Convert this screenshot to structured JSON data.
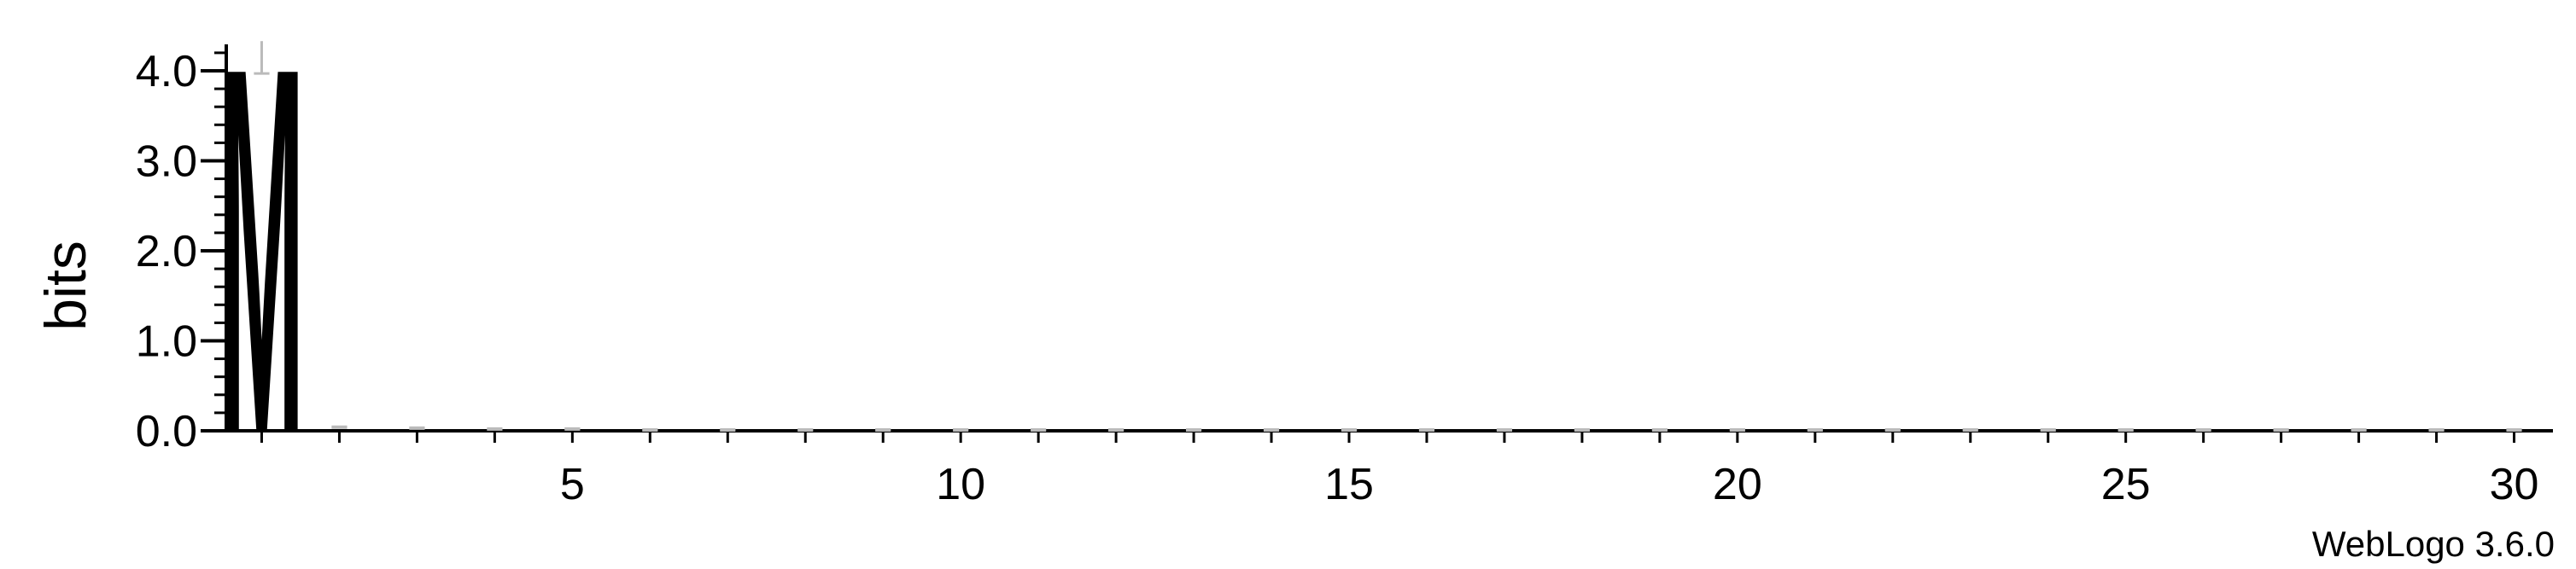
{
  "chart_data": {
    "type": "sequence_logo",
    "ylabel": "bits",
    "xlabel": "",
    "ylim": [
      0,
      4.32
    ],
    "yticks": [
      {
        "value": 0.0,
        "label": "0.0"
      },
      {
        "value": 1.0,
        "label": "1.0"
      },
      {
        "value": 2.0,
        "label": "2.0"
      },
      {
        "value": 3.0,
        "label": "3.0"
      },
      {
        "value": 4.0,
        "label": "4.0"
      }
    ],
    "y_minor_step": 0.2,
    "xlim": [
      0.5,
      30.5
    ],
    "xticks": [
      {
        "value": 5,
        "label": "5"
      },
      {
        "value": 10,
        "label": "10"
      },
      {
        "value": 15,
        "label": "15"
      },
      {
        "value": 20,
        "label": "20"
      },
      {
        "value": 25,
        "label": "25"
      },
      {
        "value": 30,
        "label": "30"
      }
    ],
    "positions": [
      {
        "position": 1,
        "letters": [
          {
            "letter": "M",
            "bits": 4.15
          }
        ],
        "error": 0.18
      },
      {
        "position": 2,
        "letters": [],
        "error": 0.04
      },
      {
        "position": 3,
        "letters": [],
        "error": 0.03
      },
      {
        "position": 4,
        "letters": [],
        "error": 0.02
      },
      {
        "position": 5,
        "letters": [],
        "error": 0.02
      },
      {
        "position": 6,
        "letters": [],
        "error": 0.01
      },
      {
        "position": 7,
        "letters": [],
        "error": 0.01
      },
      {
        "position": 8,
        "letters": [],
        "error": 0.01
      },
      {
        "position": 9,
        "letters": [],
        "error": 0.01
      },
      {
        "position": 10,
        "letters": [],
        "error": 0.01
      },
      {
        "position": 11,
        "letters": [],
        "error": 0.01
      },
      {
        "position": 12,
        "letters": [],
        "error": 0.01
      },
      {
        "position": 13,
        "letters": [],
        "error": 0.01
      },
      {
        "position": 14,
        "letters": [],
        "error": 0.01
      },
      {
        "position": 15,
        "letters": [],
        "error": 0.01
      },
      {
        "position": 16,
        "letters": [],
        "error": 0.01
      },
      {
        "position": 17,
        "letters": [],
        "error": 0.01
      },
      {
        "position": 18,
        "letters": [],
        "error": 0.01
      },
      {
        "position": 19,
        "letters": [],
        "error": 0.01
      },
      {
        "position": 20,
        "letters": [],
        "error": 0.01
      },
      {
        "position": 21,
        "letters": [],
        "error": 0.01
      },
      {
        "position": 22,
        "letters": [],
        "error": 0.01
      },
      {
        "position": 23,
        "letters": [],
        "error": 0.01
      },
      {
        "position": 24,
        "letters": [],
        "error": 0.01
      },
      {
        "position": 25,
        "letters": [],
        "error": 0.01
      },
      {
        "position": 26,
        "letters": [],
        "error": 0.01
      },
      {
        "position": 27,
        "letters": [],
        "error": 0.01
      },
      {
        "position": 28,
        "letters": [],
        "error": 0.01
      },
      {
        "position": 29,
        "letters": [],
        "error": 0.01
      },
      {
        "position": 30,
        "letters": [],
        "error": 0.01
      }
    ],
    "colors": {
      "letter": "#000000",
      "axis": "#000000",
      "error_bar": "#bbbbbb"
    }
  },
  "footer": {
    "credit": "WebLogo 3.6.0"
  }
}
